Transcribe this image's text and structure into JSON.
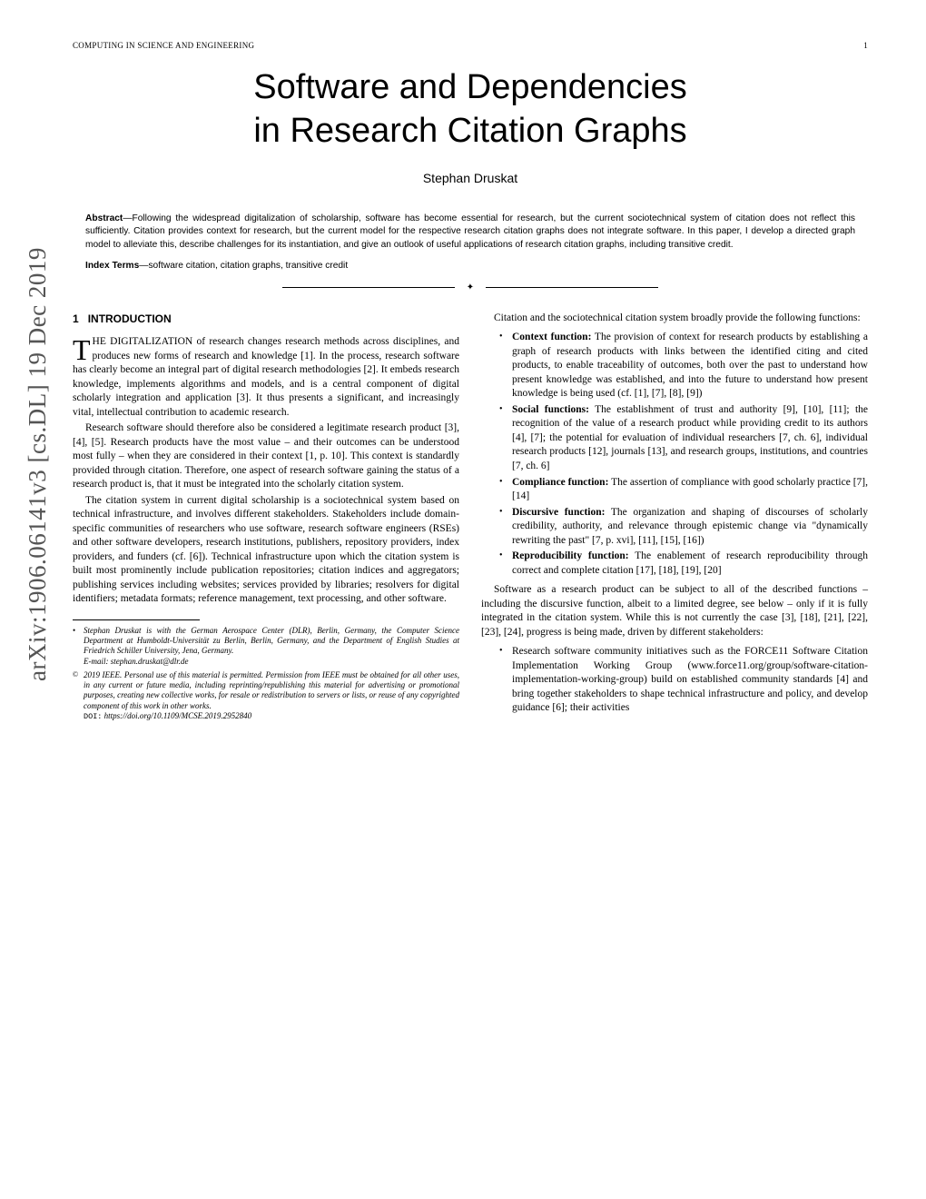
{
  "arxiv": "arXiv:1906.06141v3  [cs.DL]  19 Dec 2019",
  "header": {
    "journal": "COMPUTING IN SCIENCE AND ENGINEERING",
    "page": "1"
  },
  "title_line1": "Software and Dependencies",
  "title_line2": "in Research Citation Graphs",
  "author": "Stephan Druskat",
  "abstract_label": "Abstract",
  "abstract_text": "—Following the widespread digitalization of scholarship, software has become essential for research, but the current sociotechnical system of citation does not reflect this sufficiently. Citation provides context for research, but the current model for the respective research citation graphs does not integrate software. In this paper, I develop a directed graph model to alleviate this, describe challenges for its instantiation, and give an outlook of useful applications of research citation graphs, including transitive credit.",
  "index_label": "Index Terms",
  "index_text": "—software citation, citation graphs, transitive credit",
  "section_num": "1",
  "section_title": "INTRODUCTION",
  "dropcap": "T",
  "dropcap_word": "HE DIGITALIZATION",
  "para1": " of research changes research methods across disciplines, and produces new forms of research and knowledge [1]. In the process, research software has clearly become an integral part of digital research methodologies [2]. It embeds research knowledge, implements algorithms and models, and is a central component of digital scholarly integration and application [3]. It thus presents a significant, and increasingly vital, intellectual contribution to academic research.",
  "para2": "Research software should therefore also be considered a legitimate research product [3], [4], [5]. Research products have the most value – and their outcomes can be understood most fully – when they are considered in their context [1, p. 10]. This context is standardly provided through citation. Therefore, one aspect of research software gaining the status of a research product is, that it must be integrated into the scholarly citation system.",
  "para3": "The citation system in current digital scholarship is a sociotechnical system based on technical infrastructure, and involves different stakeholders. Stakeholders include domain-specific communities of researchers who use software, research software engineers (RSEs) and other software developers, research institutions, publishers, repository providers, index providers, and funders (cf. [6]). Technical infrastructure upon which the citation system is built most prominently include publication repositories; citation indices and aggregators; publishing services including websites; services provided by libraries; resolvers for digital identifiers; metadata formats; reference management, text processing, and other software.",
  "footnote1": "Stephan Druskat is with the German Aerospace Center (DLR), Berlin, Germany, the Computer Science Department at Humboldt-Universität zu Berlin, Berlin, Germany, and the Department of English Studies at Friedrich Schiller University, Jena, Germany.",
  "footnote1_email": "E-mail: stephan.druskat@dlr.de",
  "footnote2": "2019 IEEE. Personal use of this material is permitted. Permission from IEEE must be obtained for all other uses, in any current or future media, including reprinting/republishing this material for advertising or promotional purposes, creating new collective works, for resale or redistribution to servers or lists, or reuse of any copyrighted component of this work in other works.",
  "footnote2_doi_label": "DOI:",
  "footnote2_doi": "https://doi.org/10.1109/MCSE.2019.2952840",
  "col2_intro": "Citation and the sociotechnical citation system broadly provide the following functions:",
  "functions": [
    {
      "label": "Context function:",
      "text": " The provision of context for research products by establishing a graph of research products with links between the identified citing and cited products, to enable traceability of outcomes, both over the past to understand how present knowledge was established, and into the future to understand how present knowledge is being used (cf. [1], [7], [8], [9])"
    },
    {
      "label": "Social functions:",
      "text": " The establishment of trust and authority [9], [10], [11]; the recognition of the value of a research product while providing credit to its authors [4], [7]; the potential for evaluation of individual researchers [7, ch. 6], individual research products [12], journals [13], and research groups, institutions, and countries [7, ch. 6]"
    },
    {
      "label": "Compliance function:",
      "text": " The assertion of compliance with good scholarly practice [7], [14]"
    },
    {
      "label": "Discursive function:",
      "text": " The organization and shaping of discourses of scholarly credibility, authority, and relevance through epistemic change via \"dynamically rewriting the past\" [7, p. xvi], [11], [15], [16])"
    },
    {
      "label": "Reproducibility function:",
      "text": " The enablement of research reproducibility through correct and complete citation [17], [18], [19], [20]"
    }
  ],
  "col2_para2": "Software as a research product can be subject to all of the described functions – including the discursive function, albeit to a limited degree, see below – only if it is fully integrated in the citation system. While this is not currently the case [3], [18], [21], [22], [23], [24], progress is being made, driven by different stakeholders:",
  "stakeholders": [
    {
      "text": "Research software community initiatives such as the FORCE11 Software Citation Implementation Working Group (www.force11.org/group/software-citation-implementation-working-group) build on established community standards [4] and bring together stakeholders to shape technical infrastructure and policy, and develop guidance [6]; their activities"
    }
  ]
}
